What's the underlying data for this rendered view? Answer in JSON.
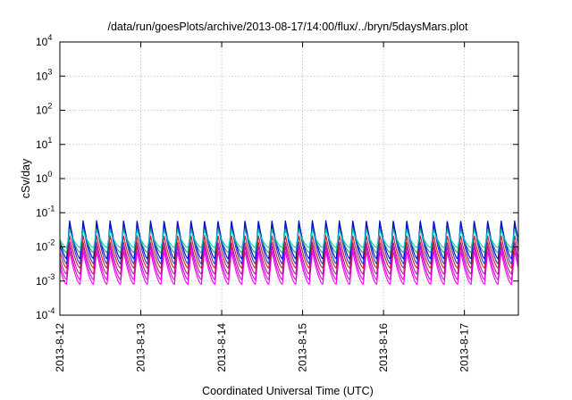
{
  "chart_data": {
    "type": "line",
    "title": "/data/run/goesPlots/archive/2013-08-17/14:00/flux/../bryn/5daysMars.plot",
    "xlabel": "Coordinated Universal Time (UTC)",
    "ylabel": "cSv/day",
    "x_range": [
      "2013-08-12",
      "2013-08-17T16:00"
    ],
    "y_scale": "log",
    "ylim": [
      0.0001,
      10000
    ],
    "grid": true,
    "x_ticks": [
      "2013-8-12",
      "2013-8-13",
      "2013-8-14",
      "2013-8-15",
      "2013-8-16",
      "2013-8-17"
    ],
    "y_ticks": [
      {
        "base": "10",
        "exp": "4",
        "value": 10000
      },
      {
        "base": "10",
        "exp": "3",
        "value": 1000
      },
      {
        "base": "10",
        "exp": "2",
        "value": 100
      },
      {
        "base": "10",
        "exp": "1",
        "value": 10
      },
      {
        "base": "10",
        "exp": "0",
        "value": 1
      },
      {
        "base": "10",
        "exp": "-1",
        "value": 0.1
      },
      {
        "base": "10",
        "exp": "-2",
        "value": 0.01
      },
      {
        "base": "10",
        "exp": "-3",
        "value": 0.001
      },
      {
        "base": "10",
        "exp": "-4",
        "value": 0.0001
      }
    ],
    "cycle_hours": 4,
    "cycle_phase_hours": 2,
    "series": [
      {
        "color": "#ff00ff",
        "min": 0.0008,
        "max": 0.0075
      },
      {
        "color": "#dd00dd",
        "min": 0.0011,
        "max": 0.0105
      },
      {
        "color": "#aa1a88",
        "min": 0.0016,
        "max": 0.014
      },
      {
        "color": "#cc2222",
        "min": 0.0024,
        "max": 0.022
      },
      {
        "color": "#2233dd",
        "min": 0.0032,
        "max": 0.045
      },
      {
        "color": "#0000cc",
        "min": 0.0045,
        "max": 0.06
      },
      {
        "color": "#1f9f66",
        "min": 0.0068,
        "max": 0.035
      },
      {
        "color": "#00cccc",
        "min": 0.0095,
        "max": 0.03
      }
    ]
  }
}
